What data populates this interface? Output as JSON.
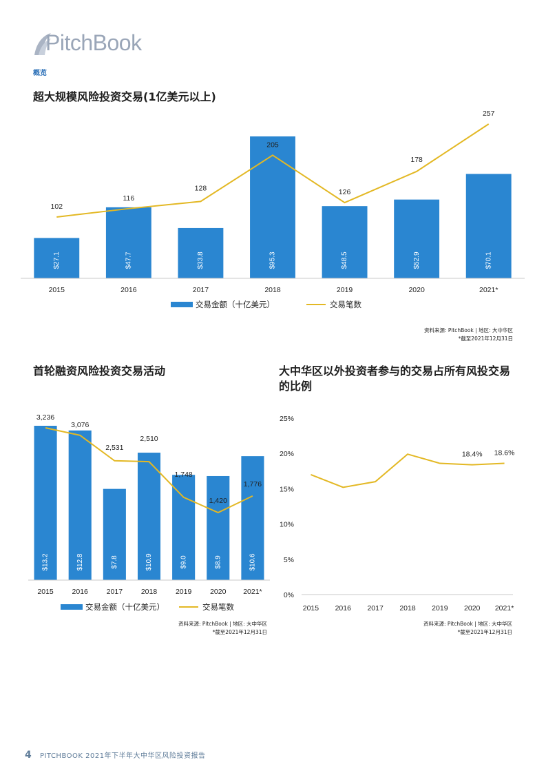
{
  "header": {
    "brand": "PitchBook",
    "section": "概览"
  },
  "chart1": {
    "title": "超大规模风险投资交易(1亿美元以上)",
    "source": "资料来源: PitchBook | 地区: 大中华区",
    "note": "*截至2021年12月31日"
  },
  "chart2": {
    "title": "首轮融资风险投资交易活动",
    "source": "资料来源: PitchBook | 地区: 大中华区",
    "note": "*截至2021年12月31日"
  },
  "chart3": {
    "title_line1": "大中华区以外投资者参与的交易占所有风投交易",
    "title_line2": "的比例",
    "source": "资料来源: PitchBook | 地区: 大中华区",
    "note": "*截至2021年12月31日"
  },
  "footer": {
    "page": "4",
    "text": "PITCHBOOK 2021年下半年大中华区风险投资报告"
  },
  "colors": {
    "bar": "#2a86d1",
    "line": "#e3b824",
    "text": "#222222"
  },
  "chart_data": [
    {
      "type": "bar",
      "title": "超大规模风险投资交易(1亿美元以上)",
      "categories": [
        "2015",
        "2016",
        "2017",
        "2018",
        "2019",
        "2020",
        "2021*"
      ],
      "bar_labels": [
        "$27.1",
        "$47.7",
        "$33.8",
        "$95.3",
        "$48.5",
        "$52.9",
        "$70.1"
      ],
      "line_labels": [
        "102",
        "116",
        "128",
        "205",
        "126",
        "178",
        "257"
      ],
      "series": [
        {
          "name": "交易金额（十亿美元）",
          "kind": "bar",
          "values": [
            27.1,
            47.7,
            33.8,
            95.3,
            48.5,
            52.9,
            70.1
          ]
        },
        {
          "name": "交易笔数",
          "kind": "line",
          "values": [
            102,
            116,
            128,
            205,
            126,
            178,
            257
          ]
        }
      ]
    },
    {
      "type": "bar",
      "title": "首轮融资风险投资交易活动",
      "categories": [
        "2015",
        "2016",
        "2017",
        "2018",
        "2019",
        "2020",
        "2021*"
      ],
      "bar_labels": [
        "$13.2",
        "$12.8",
        "$7.8",
        "$10.9",
        "$9.0",
        "$8.9",
        "$10.6"
      ],
      "line_labels": [
        "3,236",
        "3,076",
        "2,531",
        "2,510",
        "1,748",
        "1,420",
        "1,776"
      ],
      "series": [
        {
          "name": "交易金额（十亿美元）",
          "kind": "bar",
          "values": [
            13.2,
            12.8,
            7.8,
            10.9,
            9.0,
            8.9,
            10.6
          ]
        },
        {
          "name": "交易笔数",
          "kind": "line",
          "values": [
            3236,
            3076,
            2531,
            2510,
            1748,
            1420,
            1776
          ]
        }
      ]
    },
    {
      "type": "line",
      "title": "大中华区以外投资者参与的交易占所有风投交易的比例",
      "categories": [
        "2015",
        "2016",
        "2017",
        "2018",
        "2019",
        "2020",
        "2021*"
      ],
      "yticks": [
        "0%",
        "5%",
        "10%",
        "15%",
        "20%",
        "25%"
      ],
      "ylim": [
        0,
        25
      ],
      "point_labels": [
        "",
        "",
        "",
        "",
        "",
        "18.4%",
        "18.6%"
      ],
      "series": [
        {
          "kind": "line",
          "values": [
            17.0,
            15.2,
            16.0,
            19.9,
            18.6,
            18.4,
            18.6
          ]
        }
      ]
    }
  ]
}
